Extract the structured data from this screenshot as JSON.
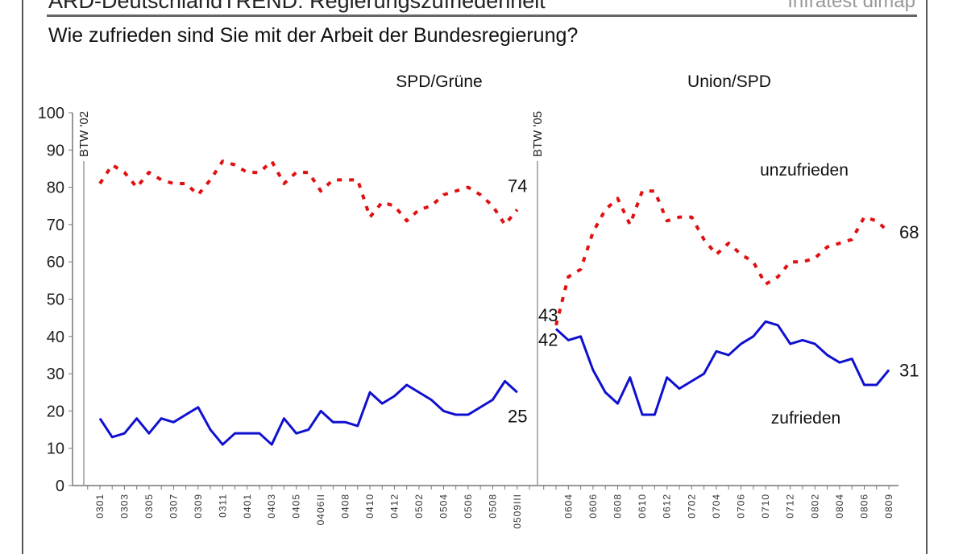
{
  "header": {
    "title": "ARD-DeutschlandTREND: Regierungszufriedenheit",
    "brand": "Infratest dimap",
    "question": "Wie zufrieden sind Sie mit der Arbeit der Bundesregierung?"
  },
  "chart_data": {
    "type": "line",
    "ylim": [
      0,
      100
    ],
    "yticks": [
      0,
      10,
      20,
      30,
      40,
      50,
      60,
      70,
      80,
      90,
      100
    ],
    "colors": {
      "unzufrieden": "#e01010",
      "zufrieden": "#1010d0"
    },
    "panels": [
      {
        "label": "SPD/Grüne",
        "marker": "BTW '02",
        "tick_labels": [
          "0301",
          "0303",
          "0305",
          "0307",
          "0309",
          "0311",
          "0401",
          "0403",
          "0405",
          "0406II",
          "0408",
          "0410",
          "0412",
          "0502",
          "0504",
          "0506",
          "0508",
          "0509III"
        ],
        "series": [
          {
            "name": "unzufrieden",
            "style": "dashed",
            "values": [
              81,
              86,
              84,
              80,
              84,
              82,
              81,
              81,
              78,
              82,
              87,
              86,
              84,
              84,
              87,
              81,
              84,
              84,
              79,
              82,
              82,
              82,
              72,
              76,
              75,
              71,
              74,
              75,
              78,
              79,
              80,
              78,
              75,
              70,
              74
            ],
            "end_label": "74"
          },
          {
            "name": "zufrieden",
            "style": "solid",
            "values": [
              18,
              13,
              14,
              18,
              14,
              18,
              17,
              19,
              21,
              15,
              11,
              14,
              14,
              14,
              11,
              18,
              14,
              15,
              20,
              17,
              17,
              16,
              25,
              22,
              24,
              27,
              25,
              23,
              20,
              19,
              19,
              21,
              23,
              28,
              25
            ],
            "end_label": "25"
          }
        ]
      },
      {
        "label": "Union/SPD",
        "marker": "BTW '05",
        "tick_labels": [
          "0604",
          "0606",
          "0608",
          "0610",
          "0612",
          "0702",
          "0704",
          "0706",
          "0710",
          "0712",
          "0802",
          "0804",
          "0806",
          "0809"
        ],
        "series": [
          {
            "name": "unzufrieden",
            "style": "dashed",
            "values": [
              43,
              56,
              58,
              68,
              74,
              77,
              70,
              79,
              79,
              71,
              72,
              72,
              66,
              62,
              65,
              62,
              60,
              54,
              56,
              60,
              60,
              61,
              64,
              65,
              66,
              72,
              71,
              68
            ],
            "start_label": "43",
            "end_label": "68"
          },
          {
            "name": "zufrieden",
            "style": "solid",
            "values": [
              42,
              39,
              40,
              31,
              25,
              22,
              29,
              19,
              19,
              29,
              26,
              28,
              30,
              36,
              35,
              38,
              40,
              44,
              43,
              38,
              39,
              38,
              35,
              33,
              34,
              27,
              27,
              31
            ],
            "start_label": "42",
            "end_label": "31"
          }
        ]
      }
    ]
  }
}
